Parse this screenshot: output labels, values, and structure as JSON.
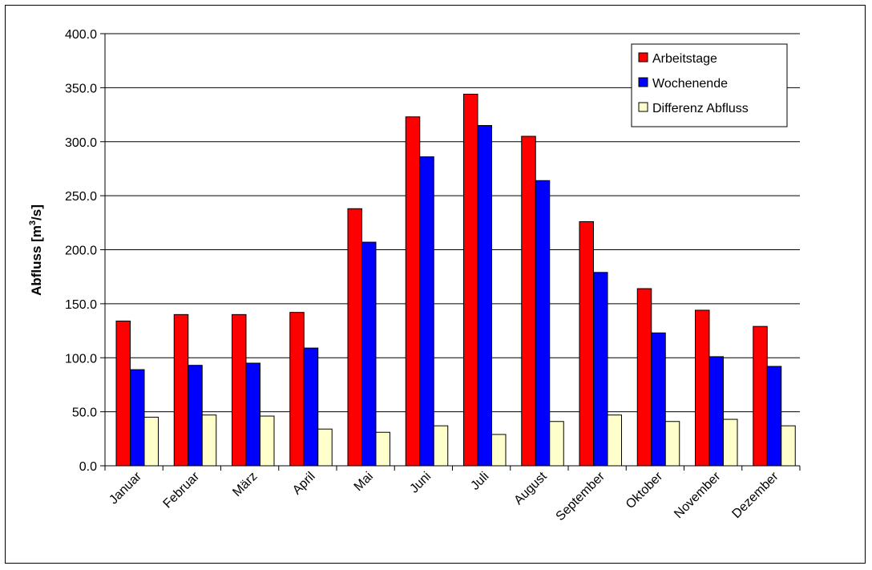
{
  "chart_data": {
    "type": "bar",
    "title": "",
    "xlabel": "",
    "ylabel": "Abfluss [m³/s]",
    "ylabel_parts": {
      "before": "Abfluss [m",
      "sup": "3",
      "after": "/s]"
    },
    "ylim": [
      0,
      400
    ],
    "ytick_step": 50,
    "ytick_labels": [
      "0.0",
      "50.0",
      "100.0",
      "150.0",
      "200.0",
      "250.0",
      "300.0",
      "350.0",
      "400.0"
    ],
    "grid": true,
    "legend_position": "top-right",
    "categories": [
      "Januar",
      "Februar",
      "März",
      "April",
      "Mai",
      "Juni",
      "Juli",
      "August",
      "September",
      "Oktober",
      "November",
      "Dezember"
    ],
    "series": [
      {
        "name": "Arbeitstage",
        "color": "#ff0000",
        "values": [
          134,
          140,
          140,
          142,
          238,
          323,
          344,
          305,
          226,
          164,
          144,
          129
        ]
      },
      {
        "name": "Wochenende",
        "color": "#0000ff",
        "values": [
          89,
          93,
          95,
          109,
          207,
          286,
          315,
          264,
          179,
          123,
          101,
          92
        ]
      },
      {
        "name": "Differenz Abfluss",
        "color": "#ffffcc",
        "values": [
          45,
          47,
          46,
          34,
          31,
          37,
          29,
          41,
          47,
          41,
          43,
          37
        ]
      }
    ]
  }
}
